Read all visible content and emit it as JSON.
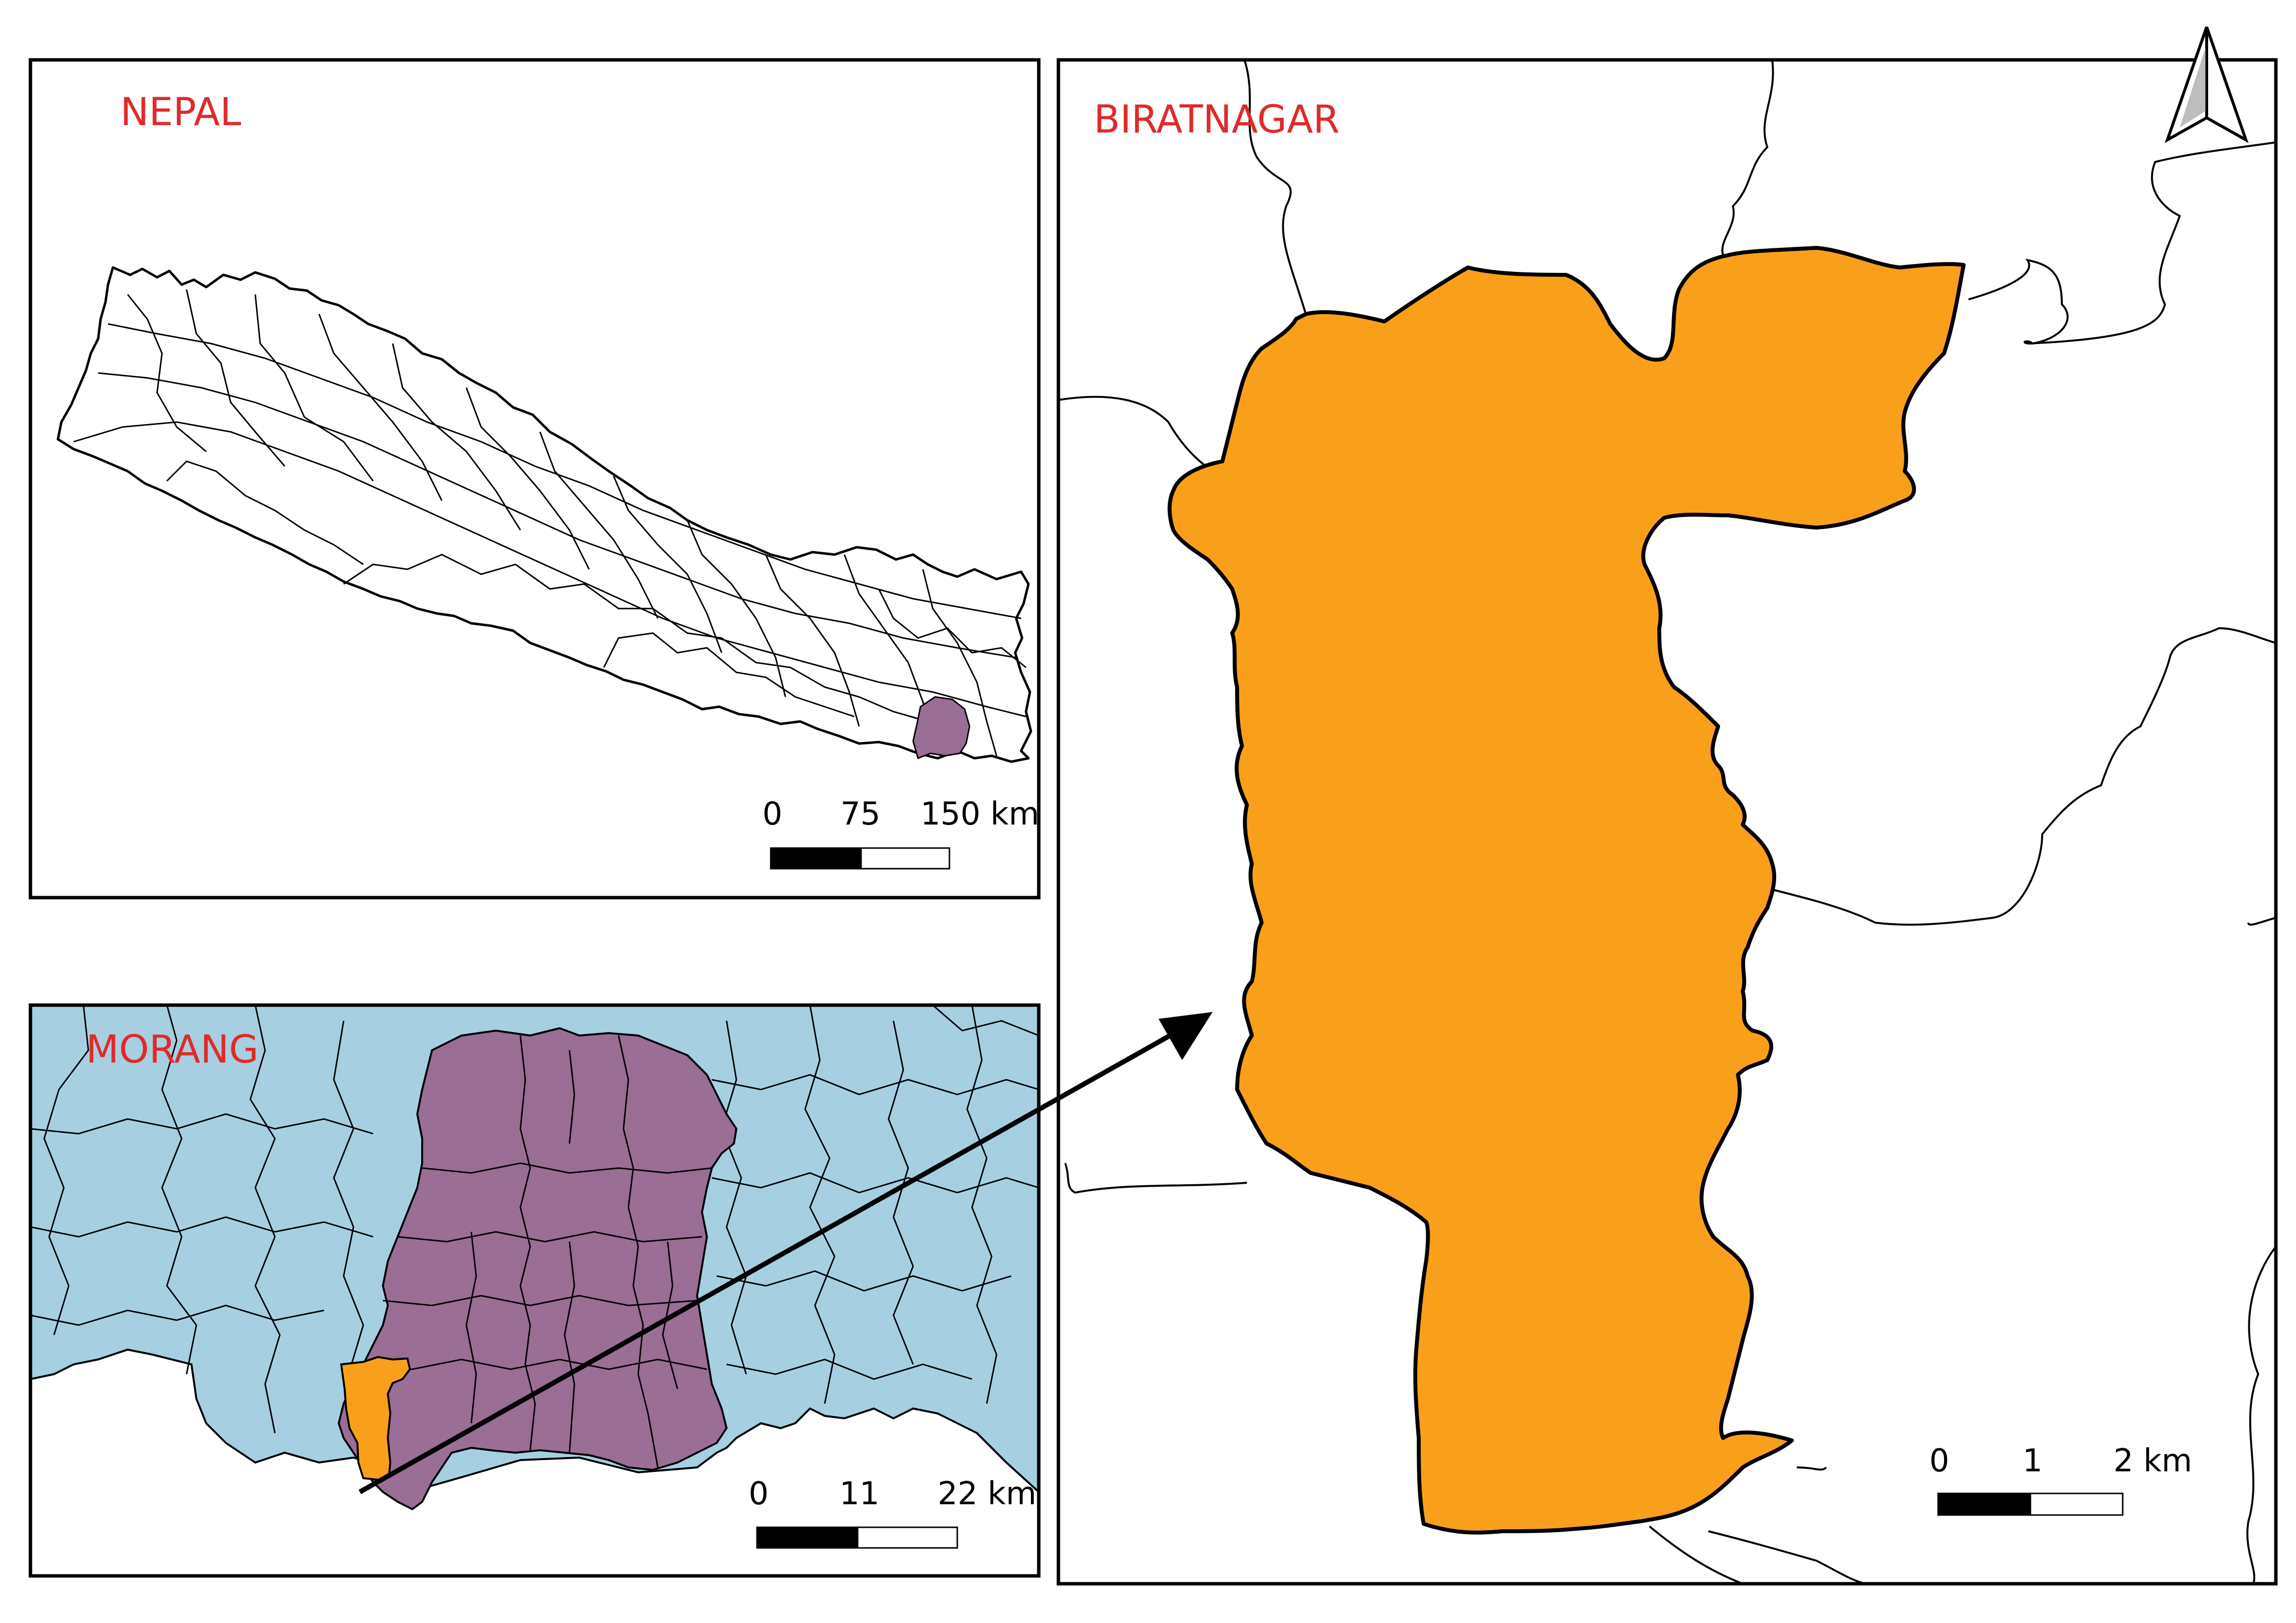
{
  "panels": {
    "nepal": {
      "title": "NEPAL"
    },
    "morang": {
      "title": "MORANG"
    },
    "biratnagar": {
      "title": "BIRATNAGAR"
    }
  },
  "scale_bars": {
    "nepal": {
      "labels": [
        "0",
        "75",
        "150 km"
      ]
    },
    "morang": {
      "labels": [
        "0",
        "11",
        "22 km"
      ]
    },
    "biratnagar": {
      "labels": [
        "0",
        "1",
        "2 km"
      ]
    }
  },
  "icons": {
    "north_arrow": "north-arrow-icon"
  },
  "colors": {
    "title_text": "#e02a2a",
    "water_blue": "#a7cfe2",
    "morang_purple": "#9b6e96",
    "biratnagar_orange": "#f9a01b",
    "border": "#000000"
  }
}
